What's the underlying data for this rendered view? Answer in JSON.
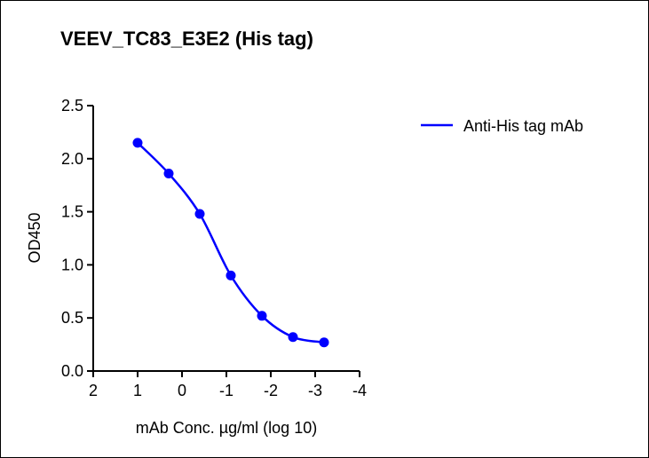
{
  "chart_data": {
    "type": "line",
    "title": "VEEV_TC83_E3E2 (His tag)",
    "xlabel": "mAb Conc. µg/ml (log 10)",
    "ylabel": "OD450",
    "xlim": [
      2,
      -4
    ],
    "ylim": [
      0,
      2.5
    ],
    "xticks": [
      "2",
      "1",
      "0",
      "-1",
      "-2",
      "-3",
      "-4"
    ],
    "xtick_values": [
      2,
      1,
      0,
      -1,
      -2,
      -3,
      -4
    ],
    "yticks": [
      "0.0",
      "0.5",
      "1.0",
      "1.5",
      "2.0",
      "2.5"
    ],
    "ytick_values": [
      0,
      0.5,
      1.0,
      1.5,
      2.0,
      2.5
    ],
    "grid": false,
    "legend_position": "top-right",
    "series": [
      {
        "name": "Anti-His tag mAb",
        "color": "#0000ff",
        "x": [
          1.0,
          0.3,
          -0.4,
          -1.1,
          -1.8,
          -2.5,
          -3.2
        ],
        "y": [
          2.15,
          1.86,
          1.48,
          0.9,
          0.52,
          0.32,
          0.27
        ]
      }
    ]
  }
}
